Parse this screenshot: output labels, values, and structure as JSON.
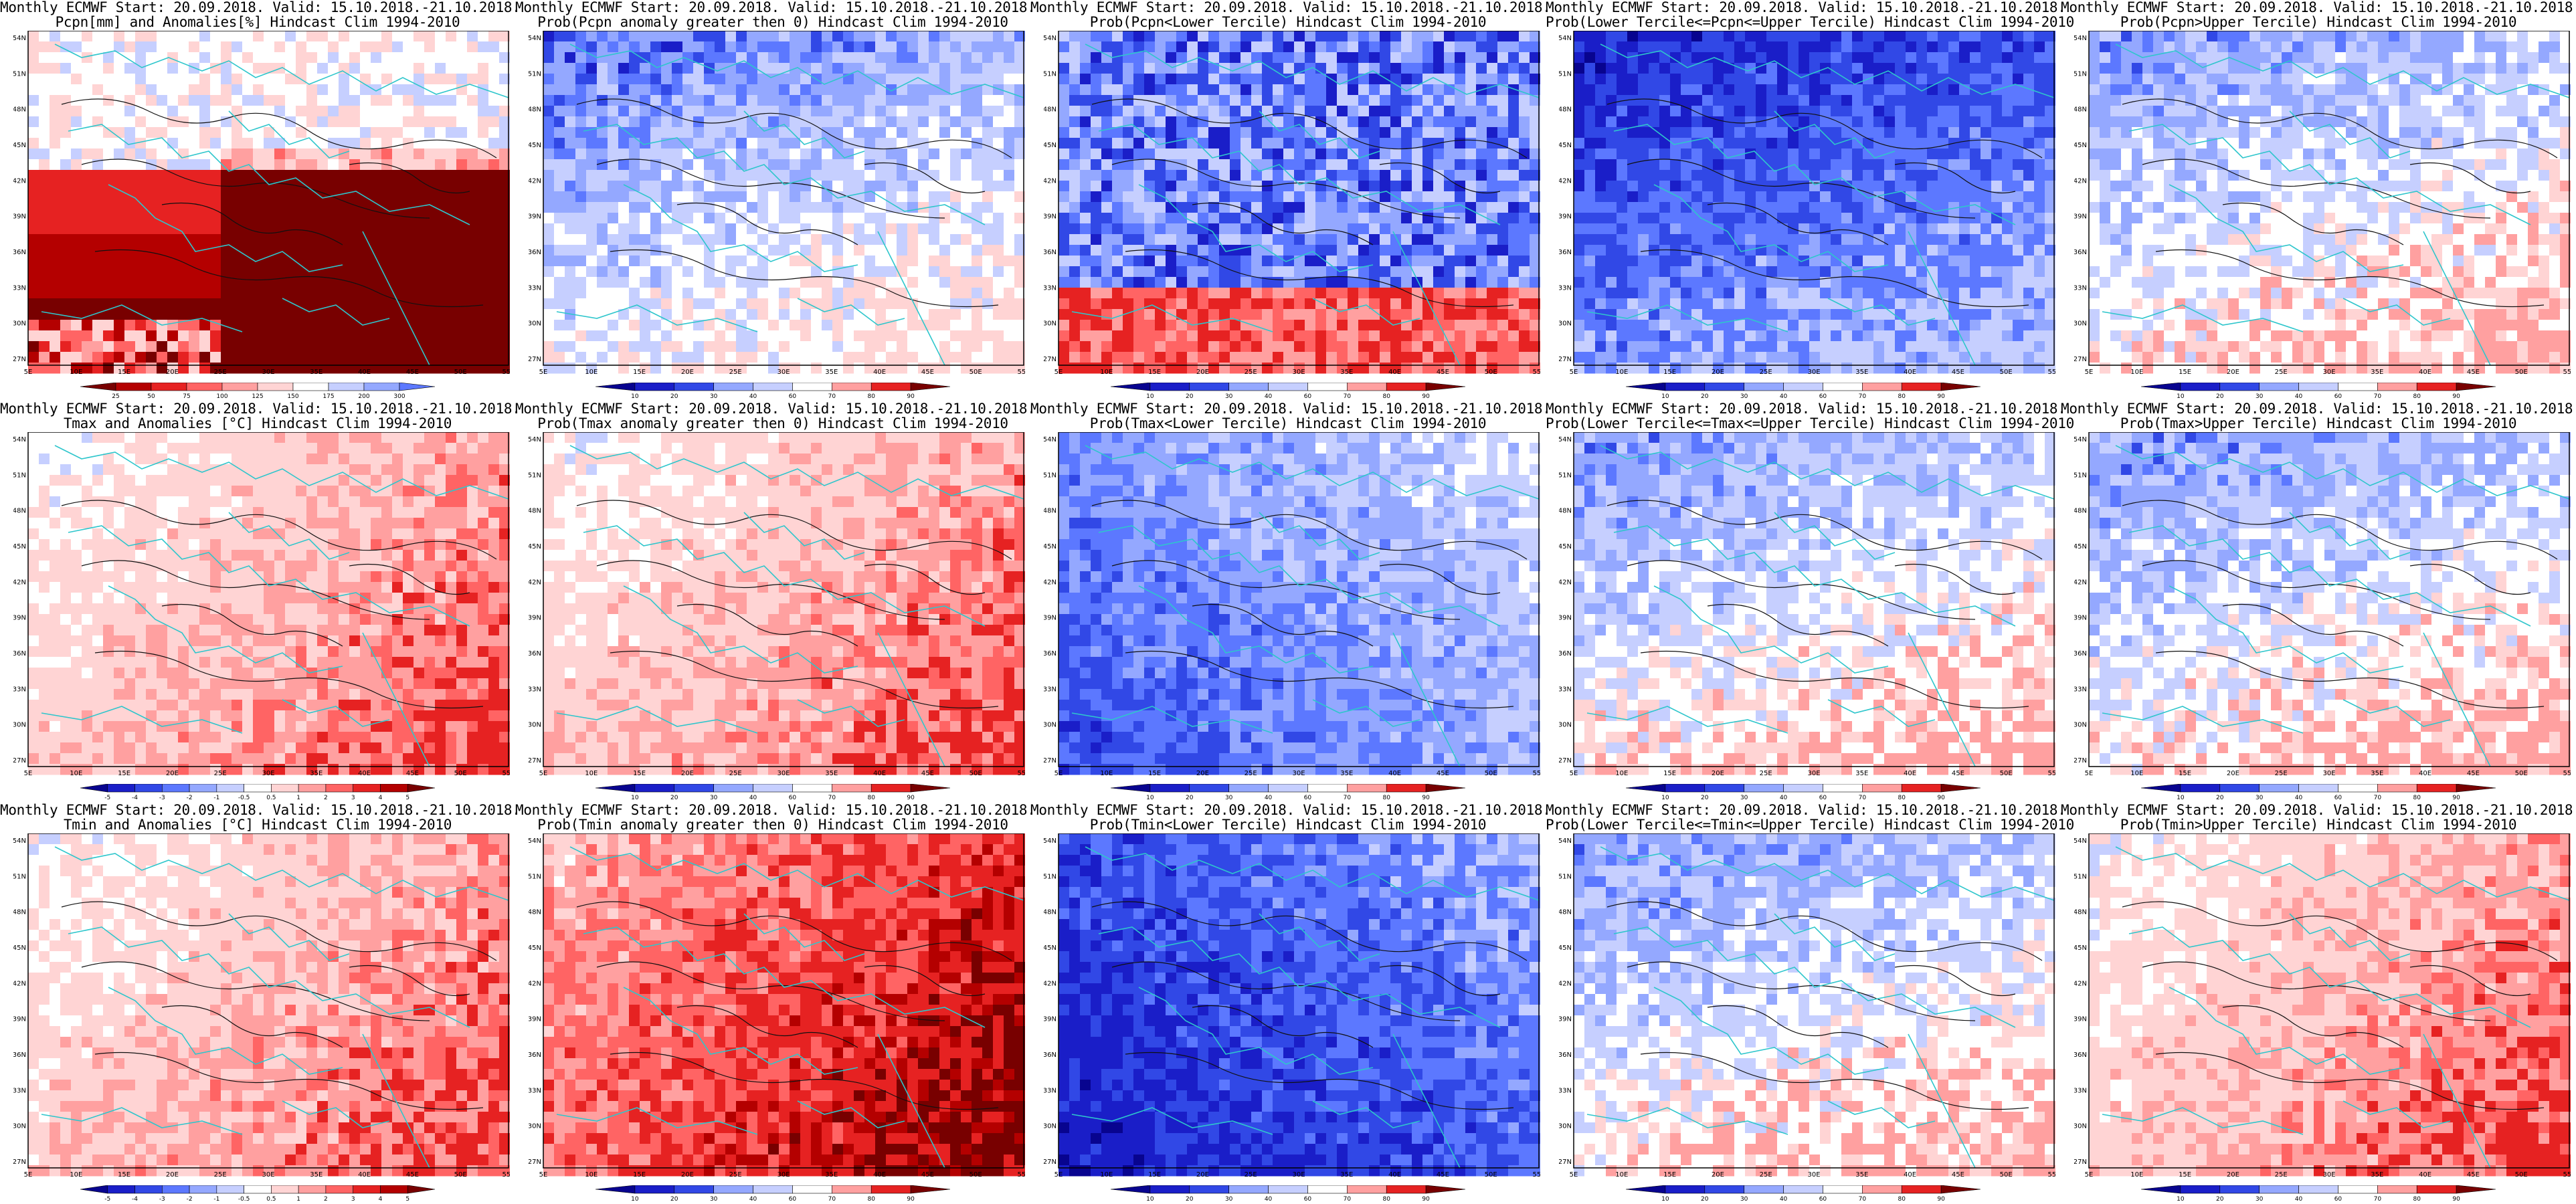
{
  "colors": {
    "coast": "#2ec6cc",
    "contour": "#111111",
    "blue_scale": [
      "#08048f",
      "#1a1ec8",
      "#3148e6",
      "#5c78ff",
      "#94a8ff",
      "#c6cfff",
      "#ffffff",
      "#ffd4d4",
      "#ffa0a0",
      "#ff6464",
      "#e62222",
      "#b40000",
      "#780000"
    ]
  },
  "axes": {
    "lat_labels": [
      "54N",
      "51N",
      "48N",
      "45N",
      "42N",
      "39N",
      "36N",
      "33N",
      "30N",
      "27N"
    ],
    "lon_labels": [
      "5E",
      "10E",
      "15E",
      "20E",
      "25E",
      "30E",
      "35E",
      "40E",
      "45E",
      "50E",
      "55E"
    ]
  },
  "colorbars": {
    "precip": [
      "25",
      "50",
      "75",
      "100",
      "125",
      "150",
      "175",
      "200",
      "300"
    ],
    "prob": [
      "10",
      "20",
      "30",
      "40",
      "60",
      "70",
      "80",
      "90"
    ],
    "temp": [
      "-5",
      "-4",
      "-3",
      "-2",
      "-1",
      "-0.5",
      "0.5",
      "1",
      "2",
      "3",
      "4",
      "5"
    ]
  },
  "panels": [
    {
      "title1": "Monthly ECMWF Start: 20.09.2018. Valid: 15.10.2018.-21.10.2018.",
      "title2": "Pcpn[mm] and Anomalies[%] Hindcast Clim 1994-2010",
      "bar": "precip",
      "field": "precip"
    },
    {
      "title1": "Monthly ECMWF Start: 20.09.2018. Valid: 15.10.2018.-21.10.2018.",
      "title2": "Prob(Pcpn anomaly greater then 0) Hindcast Clim 1994-2010",
      "bar": "prob",
      "field": "pblue"
    },
    {
      "title1": "Monthly ECMWF Start: 20.09.2018. Valid: 15.10.2018.-21.10.2018.",
      "title2": "Prob(Pcpn<Lower Tercile) Hindcast Clim 1994-2010",
      "bar": "prob",
      "field": "plow"
    },
    {
      "title1": "Monthly ECMWF Start: 20.09.2018. Valid: 15.10.2018.-21.10.2018.",
      "title2": "Prob(Lower Tercile<=Pcpn<=Upper Tercile) Hindcast Clim 1994-2010",
      "bar": "prob",
      "field": "pmid"
    },
    {
      "title1": "Monthly ECMWF Start: 20.09.2018. Valid: 15.10.2018.-21.10.2018.",
      "title2": "Prob(Pcpn>Upper Tercile) Hindcast Clim 1994-2010",
      "bar": "prob",
      "field": "pup"
    },
    {
      "title1": "Monthly ECMWF Start: 20.09.2018. Valid: 15.10.2018.-21.10.2018.",
      "title2": "Tmax and Anomalies [°C] Hindcast Clim 1994-2010",
      "bar": "temp",
      "field": "twarm"
    },
    {
      "title1": "Monthly ECMWF Start: 20.09.2018. Valid: 15.10.2018.-21.10.2018.",
      "title2": "Prob(Tmax anomaly greater then 0) Hindcast Clim 1994-2010",
      "bar": "prob",
      "field": "twarm"
    },
    {
      "title1": "Monthly ECMWF Start: 20.09.2018. Valid: 15.10.2018.-21.10.2018.",
      "title2": "Prob(Tmax<Lower Tercile) Hindcast Clim 1994-2010",
      "bar": "prob",
      "field": "tcold"
    },
    {
      "title1": "Monthly ECMWF Start: 20.09.2018. Valid: 15.10.2018.-21.10.2018.",
      "title2": "Prob(Lower Tercile<=Tmax<=Upper Tercile) Hindcast Clim 1994-2010",
      "bar": "prob",
      "field": "tmid"
    },
    {
      "title1": "Monthly ECMWF Start: 20.09.2018. Valid: 15.10.2018.-21.10.2018.",
      "title2": "Prob(Tmax>Upper Tercile) Hindcast Clim 1994-2010",
      "bar": "prob",
      "field": "tmid"
    },
    {
      "title1": "Monthly ECMWF Start: 20.09.2018. Valid: 15.10.2018.-21.10.2018.",
      "title2": "Tmin and Anomalies [°C] Hindcast Clim 1994-2010",
      "bar": "temp",
      "field": "twarm"
    },
    {
      "title1": "Monthly ECMWF Start: 20.09.2018. Valid: 15.10.2018.-21.10.2018.",
      "title2": "Prob(Tmin anomaly greater then 0) Hindcast Clim 1994-2010",
      "bar": "prob",
      "field": "thot"
    },
    {
      "title1": "Monthly ECMWF Start: 20.09.2018. Valid: 15.10.2018.-21.10.2018.",
      "title2": "Prob(Tmin<Lower Tercile) Hindcast Clim 1994-2010",
      "bar": "prob",
      "field": "tcoldest"
    },
    {
      "title1": "Monthly ECMWF Start: 20.09.2018. Valid: 15.10.2018.-21.10.2018.",
      "title2": "Prob(Lower Tercile<=Tmin<=Upper Tercile) Hindcast Clim 1994-2010",
      "bar": "prob",
      "field": "tmid"
    },
    {
      "title1": "Monthly ECMWF Start: 20.09.2018. Valid: 15.10.2018.-21.10.2018.",
      "title2": "Prob(Tmin>Upper Tercile) Hindcast Clim 1994-2010",
      "bar": "prob",
      "field": "twarm"
    }
  ]
}
